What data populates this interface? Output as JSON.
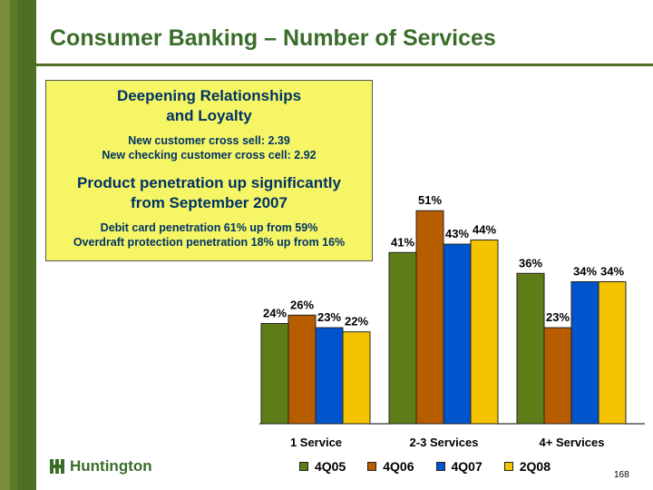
{
  "title": "Consumer Banking – Number of Services",
  "callout": {
    "heading1": "Deepening Relationships",
    "heading2": "and Loyalty",
    "line1": "New customer cross sell:  2.39",
    "line2": "New checking customer cross cell:  2.92",
    "heading3": "Product penetration up significantly",
    "heading4": "from September 2007",
    "line3": "Debit card penetration 61% up from 59%",
    "line4": "Overdraft protection penetration 18% up from 16%"
  },
  "logo_text": "Huntington",
  "page_number": "168",
  "chart_data": {
    "type": "bar",
    "categories": [
      "1 Service",
      "2-3 Services",
      "4+ Services"
    ],
    "series": [
      {
        "name": "4Q05",
        "values": [
          24,
          41,
          36
        ],
        "color": "#5e7d16"
      },
      {
        "name": "4Q06",
        "values": [
          26,
          51,
          23
        ],
        "color": "#b85c00"
      },
      {
        "name": "4Q07",
        "values": [
          23,
          43,
          34
        ],
        "color": "#0055cc"
      },
      {
        "name": "2Q08",
        "values": [
          22,
          44,
          34
        ],
        "color": "#f5c400"
      }
    ],
    "value_suffix": "%",
    "ylim": [
      0,
      58
    ],
    "legend_position": "bottom",
    "grid": false
  }
}
